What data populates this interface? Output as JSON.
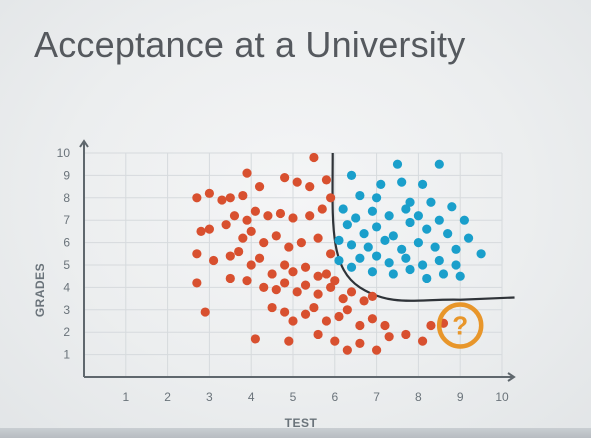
{
  "slide": {
    "title": "Acceptance at a University"
  },
  "colors": {
    "accepted": "#1a9fcb",
    "rejected": "#d8502f",
    "question": "#e8962a",
    "boundary": "#2f3338",
    "grid": "#d6dadd",
    "axis": "#5f676d"
  },
  "question_marker": {
    "label": "?",
    "x": 9.0,
    "y": 2.3
  },
  "chart_data": {
    "type": "scatter",
    "title": "",
    "xlabel": "TEST",
    "ylabel": "GRADES",
    "xlim": [
      0,
      10
    ],
    "ylim": [
      0,
      10
    ],
    "xticks": [
      "1",
      "2",
      "3",
      "4",
      "5",
      "6",
      "7",
      "8",
      "9",
      "10"
    ],
    "yticks": [
      "1",
      "2",
      "3",
      "4",
      "5",
      "6",
      "7",
      "8",
      "9",
      "10"
    ],
    "grid": true,
    "series": [
      {
        "color": "#d8502f",
        "points": [
          [
            2.7,
            8.0
          ],
          [
            3.0,
            8.2
          ],
          [
            3.3,
            7.9
          ],
          [
            3.5,
            8.0
          ],
          [
            3.8,
            8.1
          ],
          [
            3.9,
            9.1
          ],
          [
            4.2,
            8.5
          ],
          [
            4.8,
            8.9
          ],
          [
            5.1,
            8.7
          ],
          [
            5.5,
            9.8
          ],
          [
            5.4,
            8.5
          ],
          [
            5.8,
            8.8
          ],
          [
            5.9,
            8.0
          ],
          [
            3.6,
            7.2
          ],
          [
            3.9,
            7.0
          ],
          [
            4.1,
            7.4
          ],
          [
            4.4,
            7.2
          ],
          [
            4.7,
            7.3
          ],
          [
            5.0,
            7.1
          ],
          [
            5.4,
            7.2
          ],
          [
            5.7,
            7.5
          ],
          [
            2.8,
            6.5
          ],
          [
            3.0,
            6.6
          ],
          [
            3.4,
            6.8
          ],
          [
            3.8,
            6.2
          ],
          [
            4.0,
            6.5
          ],
          [
            4.3,
            6.0
          ],
          [
            4.6,
            6.3
          ],
          [
            4.9,
            5.8
          ],
          [
            5.2,
            6.0
          ],
          [
            5.6,
            6.2
          ],
          [
            5.9,
            5.5
          ],
          [
            2.7,
            5.5
          ],
          [
            3.1,
            5.2
          ],
          [
            3.5,
            5.4
          ],
          [
            3.7,
            5.6
          ],
          [
            4.0,
            5.0
          ],
          [
            4.2,
            5.3
          ],
          [
            4.5,
            4.6
          ],
          [
            4.8,
            5.0
          ],
          [
            5.0,
            4.7
          ],
          [
            5.3,
            4.9
          ],
          [
            5.6,
            4.5
          ],
          [
            5.8,
            4.6
          ],
          [
            6.0,
            4.3
          ],
          [
            2.7,
            4.2
          ],
          [
            3.5,
            4.4
          ],
          [
            3.9,
            4.3
          ],
          [
            4.3,
            4.0
          ],
          [
            4.6,
            3.9
          ],
          [
            4.8,
            4.2
          ],
          [
            5.1,
            3.8
          ],
          [
            5.3,
            4.1
          ],
          [
            5.6,
            3.7
          ],
          [
            5.9,
            4.0
          ],
          [
            6.2,
            3.5
          ],
          [
            6.4,
            3.8
          ],
          [
            6.7,
            3.4
          ],
          [
            6.9,
            3.6
          ],
          [
            2.9,
            2.9
          ],
          [
            4.5,
            3.1
          ],
          [
            4.8,
            2.9
          ],
          [
            5.0,
            2.5
          ],
          [
            5.3,
            2.8
          ],
          [
            5.5,
            3.1
          ],
          [
            5.8,
            2.5
          ],
          [
            6.1,
            2.7
          ],
          [
            6.3,
            3.0
          ],
          [
            6.6,
            2.3
          ],
          [
            6.9,
            2.6
          ],
          [
            7.2,
            2.3
          ],
          [
            4.1,
            1.7
          ],
          [
            4.9,
            1.6
          ],
          [
            5.6,
            1.9
          ],
          [
            6.0,
            1.6
          ],
          [
            6.3,
            1.2
          ],
          [
            6.6,
            1.5
          ],
          [
            7.0,
            1.2
          ],
          [
            7.3,
            1.8
          ],
          [
            7.7,
            1.9
          ],
          [
            8.1,
            1.6
          ],
          [
            8.3,
            2.3
          ],
          [
            8.6,
            2.4
          ]
        ]
      },
      {
        "color": "#1a9fcb",
        "points": [
          [
            6.4,
            9.0
          ],
          [
            7.5,
            9.5
          ],
          [
            8.5,
            9.5
          ],
          [
            6.6,
            8.1
          ],
          [
            7.1,
            8.6
          ],
          [
            7.6,
            8.7
          ],
          [
            8.1,
            8.6
          ],
          [
            7.0,
            8.0
          ],
          [
            7.8,
            7.8
          ],
          [
            8.3,
            7.8
          ],
          [
            8.8,
            7.6
          ],
          [
            6.2,
            7.5
          ],
          [
            6.5,
            7.1
          ],
          [
            6.9,
            7.4
          ],
          [
            7.3,
            7.2
          ],
          [
            7.7,
            7.5
          ],
          [
            8.0,
            7.2
          ],
          [
            8.5,
            7.0
          ],
          [
            9.1,
            7.0
          ],
          [
            6.3,
            6.8
          ],
          [
            6.7,
            6.4
          ],
          [
            7.0,
            6.7
          ],
          [
            7.4,
            6.3
          ],
          [
            7.8,
            6.9
          ],
          [
            8.2,
            6.6
          ],
          [
            8.7,
            6.4
          ],
          [
            9.2,
            6.2
          ],
          [
            6.1,
            6.1
          ],
          [
            6.4,
            5.9
          ],
          [
            6.8,
            5.8
          ],
          [
            7.2,
            6.1
          ],
          [
            7.6,
            5.7
          ],
          [
            8.0,
            6.0
          ],
          [
            8.4,
            5.8
          ],
          [
            8.9,
            5.7
          ],
          [
            9.5,
            5.5
          ],
          [
            6.1,
            5.2
          ],
          [
            6.6,
            5.3
          ],
          [
            7.0,
            5.4
          ],
          [
            7.3,
            5.1
          ],
          [
            7.7,
            5.3
          ],
          [
            8.1,
            5.0
          ],
          [
            8.5,
            5.2
          ],
          [
            8.9,
            5.0
          ],
          [
            6.4,
            4.9
          ],
          [
            6.9,
            4.7
          ],
          [
            7.4,
            4.6
          ],
          [
            7.8,
            4.8
          ],
          [
            8.2,
            4.4
          ],
          [
            8.6,
            4.6
          ],
          [
            9.0,
            4.5
          ]
        ]
      }
    ]
  }
}
